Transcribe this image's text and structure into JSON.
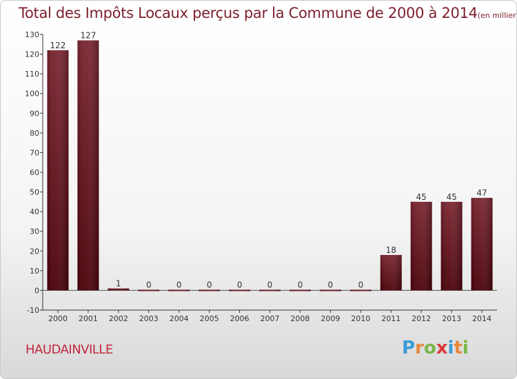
{
  "title": "Total des Impôts Locaux perçus par la Commune de 2000 à 2014",
  "title_unit": "(en milliers d'€)",
  "commune": "HAUDAINVILLE",
  "logo": {
    "letters": [
      "P",
      "r",
      "o",
      "x",
      "i",
      "t",
      "i"
    ],
    "colors": [
      "#3a9ad9",
      "#e8873a",
      "#7ab648",
      "#d93a3a",
      "#3a9ad9",
      "#e8873a",
      "#7ab648"
    ]
  },
  "colors": {
    "bar": "#6e1420",
    "bar_dark": "#4a0008",
    "title": "#7b1f2c",
    "commune": "#c0283e"
  },
  "chart_data": {
    "type": "bar",
    "title": "Total des Impôts Locaux perçus par la Commune de 2000 à 2014",
    "categories": [
      "2000",
      "2001",
      "2002",
      "2003",
      "2004",
      "2005",
      "2006",
      "2007",
      "2008",
      "2009",
      "2010",
      "2011",
      "2012",
      "2013",
      "2014"
    ],
    "values": [
      122,
      127,
      1,
      0,
      0,
      0,
      0,
      0,
      0,
      0,
      0,
      18,
      45,
      45,
      47
    ],
    "ylim": [
      -10,
      130
    ],
    "yticks": [
      -10,
      0,
      10,
      20,
      30,
      40,
      50,
      60,
      70,
      80,
      90,
      100,
      110,
      120,
      130
    ],
    "grid": false,
    "xlabel": "",
    "ylabel": ""
  }
}
